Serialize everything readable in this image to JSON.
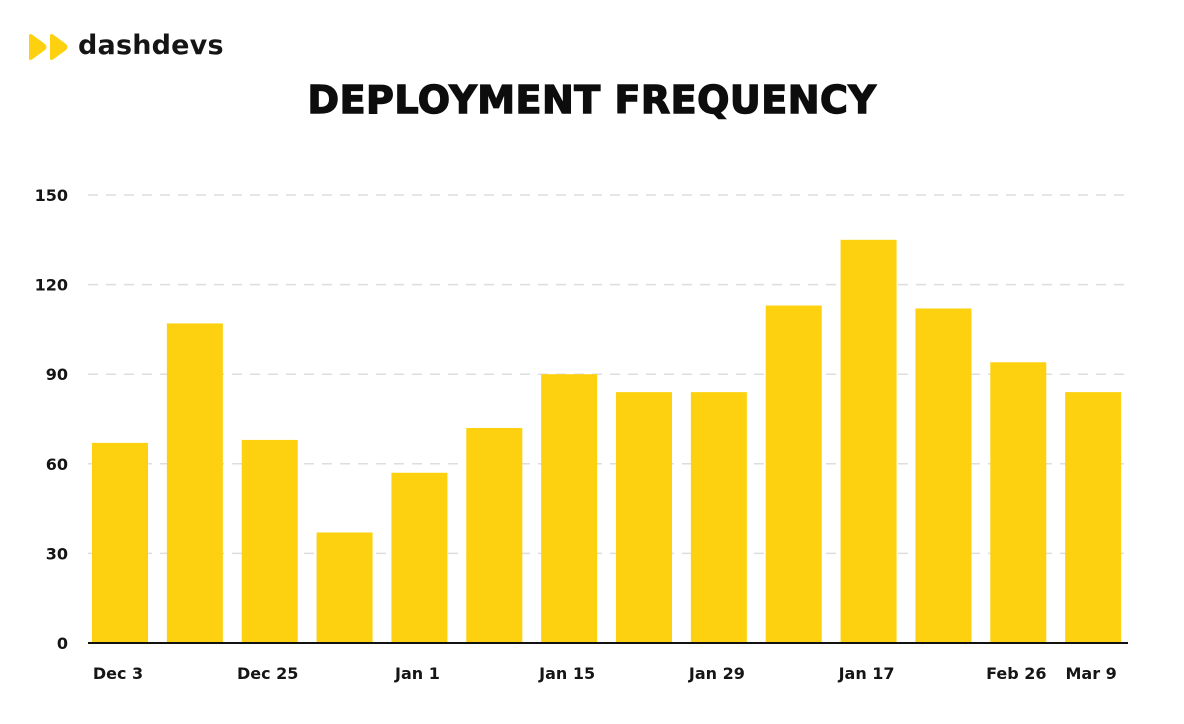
{
  "brand": {
    "name": "dashdevs",
    "logo_icon": "double-play-icon",
    "accent_color": "#FDD10F"
  },
  "chart_data": {
    "type": "bar",
    "title": "DEPLOYMENT FREQUENCY",
    "xlabel": "",
    "ylabel": "",
    "categories": [
      "Dec 3",
      "",
      "Dec 25",
      "",
      "Jan 1",
      "",
      "Jan 15",
      "",
      "Jan 29",
      "",
      "Jan 17",
      "",
      "Feb 26",
      "Mar 9"
    ],
    "values": [
      67,
      107,
      68,
      37,
      57,
      72,
      90,
      84,
      84,
      113,
      135,
      112,
      94,
      84
    ],
    "ylim": [
      0,
      150
    ],
    "yticks": [
      0,
      30,
      60,
      90,
      120,
      150
    ],
    "grid": true,
    "bar_color": "#FDD10F",
    "axis_color": "#111111",
    "grid_color": "#DDDDDD"
  }
}
